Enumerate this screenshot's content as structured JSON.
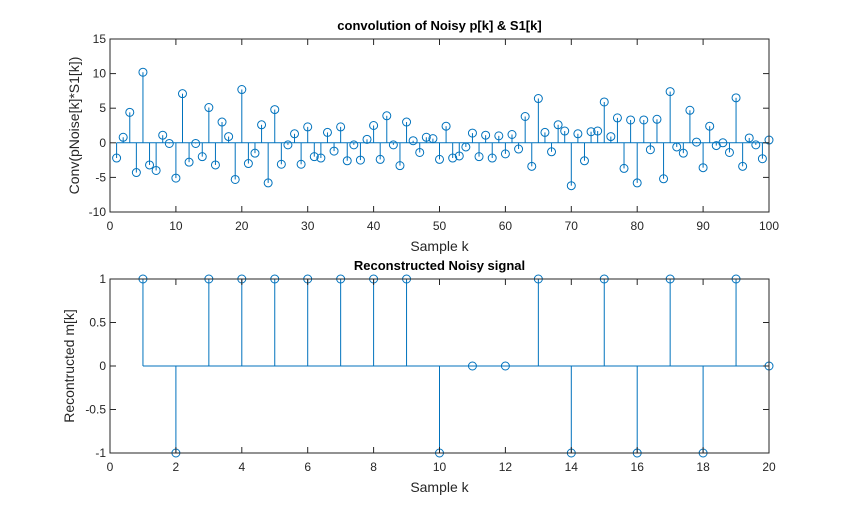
{
  "chart_data": [
    {
      "type": "stem",
      "title": "convolution of Noisy p[k] & S1[k]",
      "xlabel": "Sample k",
      "ylabel": "Conv(pNoise[k]*S1[k])",
      "xlim": [
        0,
        100
      ],
      "ylim": [
        -10,
        15
      ],
      "xticks": [
        "0",
        "10",
        "20",
        "30",
        "40",
        "50",
        "60",
        "70",
        "80",
        "90",
        "100"
      ],
      "yticks": [
        "-10",
        "-5",
        "0",
        "5",
        "10",
        "15"
      ],
      "grid": false,
      "color": "#0072BD",
      "x": [
        1,
        2,
        3,
        4,
        5,
        6,
        7,
        8,
        9,
        10,
        11,
        12,
        13,
        14,
        15,
        16,
        17,
        18,
        19,
        20,
        21,
        22,
        23,
        24,
        25,
        26,
        27,
        28,
        29,
        30,
        31,
        32,
        33,
        34,
        35,
        36,
        37,
        38,
        39,
        40,
        41,
        42,
        43,
        44,
        45,
        46,
        47,
        48,
        49,
        50,
        51,
        52,
        53,
        54,
        55,
        56,
        57,
        58,
        59,
        60,
        61,
        62,
        63,
        64,
        65,
        66,
        67,
        68,
        69,
        70,
        71,
        72,
        73,
        74,
        75,
        76,
        77,
        78,
        79,
        80,
        81,
        82,
        83,
        84,
        85,
        86,
        87,
        88,
        89,
        90,
        91,
        92,
        93,
        94,
        95,
        96,
        97,
        98,
        99,
        100
      ],
      "values": [
        -2.2,
        0.8,
        4.4,
        -4.3,
        10.2,
        -3.2,
        -4.0,
        1.1,
        -0.1,
        -5.1,
        7.1,
        -2.8,
        -0.1,
        -2.0,
        5.1,
        -3.2,
        3.0,
        0.9,
        -5.3,
        7.7,
        -3.0,
        -1.5,
        2.6,
        -5.8,
        4.8,
        -3.1,
        -0.3,
        1.3,
        -3.1,
        2.3,
        -2.0,
        -2.2,
        1.5,
        -1.2,
        2.3,
        -2.6,
        -0.3,
        -2.5,
        0.5,
        2.5,
        -2.4,
        3.9,
        -0.3,
        -3.3,
        3.0,
        0.3,
        -1.4,
        0.8,
        0.6,
        -2.4,
        2.4,
        -2.2,
        -1.9,
        -0.6,
        1.4,
        -2.0,
        1.1,
        -2.2,
        1.0,
        -1.6,
        1.2,
        -0.9,
        3.8,
        -3.4,
        6.4,
        1.5,
        -1.3,
        2.6,
        1.7,
        -6.2,
        1.3,
        -2.6,
        1.6,
        1.7,
        5.9,
        0.9,
        3.6,
        -3.7,
        3.3,
        -5.8,
        3.3,
        -1.0,
        3.4,
        -5.2,
        7.4,
        -0.6,
        -1.5,
        4.7,
        0.1,
        -3.6,
        2.4,
        -0.4,
        0.0,
        -1.4,
        6.5,
        -3.4,
        0.7,
        -0.3,
        -2.3,
        0.4
      ]
    },
    {
      "type": "stem",
      "title": "Reconstructed Noisy signal",
      "xlabel": "Sample k",
      "ylabel": "Recontructed m[k]",
      "xlim": [
        0,
        20
      ],
      "ylim": [
        -1,
        1
      ],
      "xticks": [
        "0",
        "2",
        "4",
        "6",
        "8",
        "10",
        "12",
        "14",
        "16",
        "18",
        "20"
      ],
      "yticks": [
        "-1",
        "-0.5",
        "0",
        "0.5",
        "1"
      ],
      "grid": false,
      "color": "#0072BD",
      "x": [
        1,
        2,
        3,
        4,
        5,
        6,
        7,
        8,
        9,
        10,
        11,
        12,
        13,
        14,
        15,
        16,
        17,
        18,
        19,
        20
      ],
      "values": [
        1,
        -1,
        1,
        1,
        1,
        1,
        1,
        1,
        1,
        -1,
        0,
        0,
        1,
        -1,
        1,
        -1,
        1,
        -1,
        1,
        0
      ]
    }
  ]
}
